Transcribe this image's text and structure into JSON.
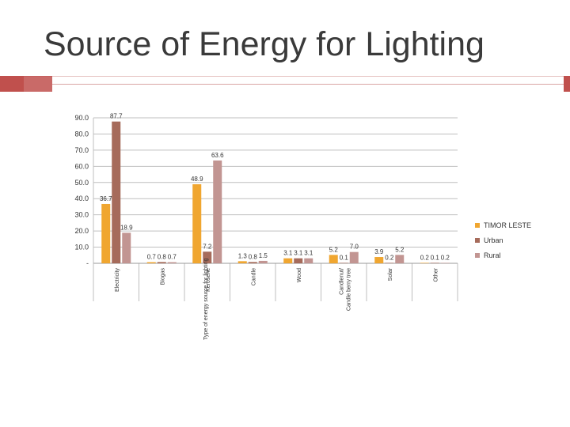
{
  "title": "Source of Energy for Lighting",
  "chart_data": {
    "type": "bar",
    "title": "",
    "xlabel": "Type of energy source for lighting",
    "ylabel": "",
    "ylim": [
      0,
      90
    ],
    "y_ticks": [
      "-",
      "10.0",
      "20.0",
      "30.0",
      "40.0",
      "50.0",
      "60.0",
      "70.0",
      "80.0",
      "90.0"
    ],
    "categories": [
      "Electricity",
      "Biogas",
      "Kerosene",
      "Candle",
      "Wood",
      "Candlenut/Candle berry tree",
      "Solar",
      "Other"
    ],
    "series": [
      {
        "name": "TIMOR LESTE",
        "values": [
          36.7,
          0.7,
          48.9,
          1.3,
          3.1,
          5.2,
          3.9,
          0.2
        ],
        "labels": [
          "36.7",
          "0.7",
          "48.9",
          "1.3",
          "3.1",
          "5.2",
          "3.9",
          "0.2"
        ]
      },
      {
        "name": "Urban",
        "values": [
          87.7,
          0.8,
          7.2,
          0.8,
          3.1,
          0.1,
          0.2,
          0.1
        ],
        "labels": [
          "87.7",
          "0.8",
          "7.2",
          "0.8",
          "3.1",
          "0.1",
          "0.2",
          "0.1"
        ]
      },
      {
        "name": "Rural",
        "values": [
          18.9,
          0.7,
          63.6,
          1.5,
          3.1,
          7.0,
          5.2,
          0.2
        ],
        "labels": [
          "18.9",
          "0.7",
          "63.6",
          "1.5",
          "3.1",
          "7.0",
          "5.2",
          "0.2"
        ]
      }
    ],
    "colors": [
      "#f0a630",
      "#a66b5b",
      "#c29592"
    ],
    "grid": true,
    "legend": "right"
  }
}
